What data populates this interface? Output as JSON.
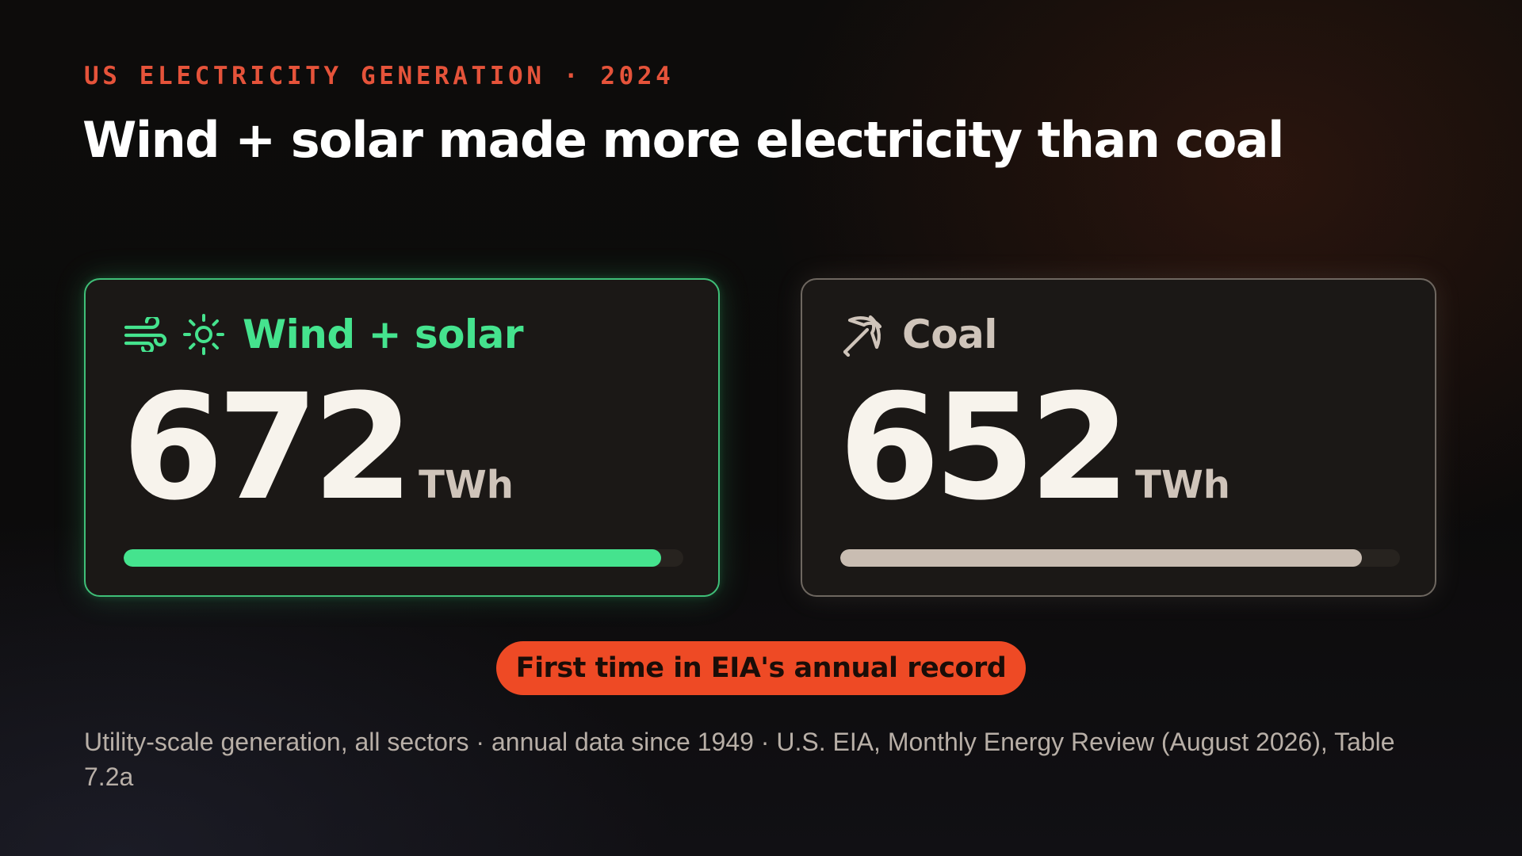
{
  "kicker": "US ELECTRICITY GENERATION · 2024",
  "headline": "Wind + solar made more electricity than coal",
  "colors": {
    "accent": "#e5533a",
    "renewable": "#45e38e",
    "coal": "#c9bdb2",
    "badge": "#ee4a25"
  },
  "chart_data": {
    "type": "bar",
    "title": "Wind + solar made more electricity than coal",
    "categories": [
      "Wind + solar",
      "Coal"
    ],
    "values": [
      672,
      652
    ],
    "unit": "TWh",
    "ylim": [
      0,
      700
    ]
  },
  "cards": [
    {
      "title": "Wind + solar",
      "value": "672",
      "unit": "TWh",
      "icons": [
        "wind-icon",
        "sun-icon"
      ]
    },
    {
      "title": "Coal",
      "value": "652",
      "unit": "TWh",
      "icons": [
        "pickaxe-icon"
      ]
    }
  ],
  "badge": "First time in EIA's annual record",
  "footnote": "Utility-scale generation, all sectors · annual data since 1949 · U.S. EIA, Monthly Energy Review (August 2026), Table 7.2a"
}
